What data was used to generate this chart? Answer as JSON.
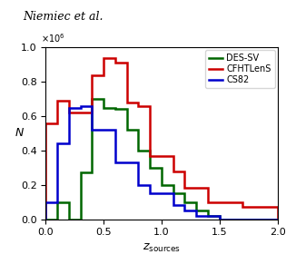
{
  "title_text": "Niemiec et al.",
  "xlabel": "$z_\\mathrm{sources}$",
  "ylabel": "$N$",
  "xlim": [
    0.0,
    2.0
  ],
  "ylim": [
    0.0,
    1000000.0
  ],
  "bin_edges": [
    0.0,
    0.1,
    0.2,
    0.3,
    0.4,
    0.5,
    0.6,
    0.7,
    0.8,
    0.9,
    1.0,
    1.1,
    1.2,
    1.3,
    1.4,
    1.5,
    1.6,
    1.7,
    1.8,
    1.9,
    2.0
  ],
  "DES_SV": [
    0.0,
    0.1,
    0.0,
    0.27,
    0.7,
    0.65,
    0.64,
    0.52,
    0.4,
    0.3,
    0.2,
    0.15,
    0.1,
    0.05,
    0.02,
    0.0,
    0.0,
    0.0,
    0.0,
    0.0
  ],
  "CFHTLenS": [
    0.56,
    0.69,
    0.62,
    0.62,
    0.84,
    0.94,
    0.91,
    0.68,
    0.66,
    0.37,
    0.37,
    0.28,
    0.18,
    0.18,
    0.1,
    0.1,
    0.1,
    0.07,
    0.07,
    0.07
  ],
  "CS82": [
    0.1,
    0.44,
    0.65,
    0.66,
    0.52,
    0.52,
    0.33,
    0.33,
    0.2,
    0.15,
    0.15,
    0.08,
    0.05,
    0.02,
    0.02,
    0.0,
    0.0,
    0.0,
    0.0,
    0.0
  ],
  "color_DES": "#006600",
  "color_CFHTLenS": "#cc0000",
  "color_CS82": "#0000cc",
  "lw": 1.8
}
